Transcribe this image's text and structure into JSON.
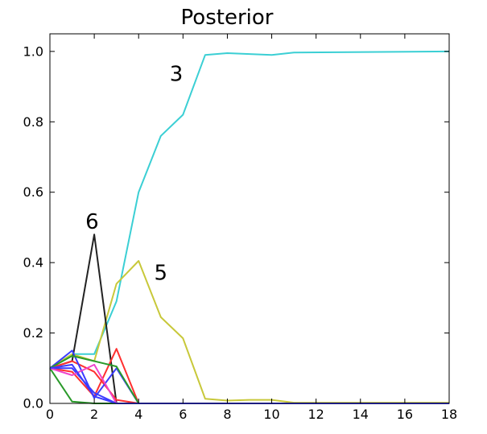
{
  "chart_data": {
    "type": "line",
    "title": "Posterior",
    "xlabel": "",
    "ylabel": "",
    "xlim": [
      0,
      18
    ],
    "ylim": [
      0,
      1.05
    ],
    "x_ticks": [
      "0",
      "2",
      "4",
      "6",
      "8",
      "10",
      "12",
      "14",
      "16",
      "18"
    ],
    "y_ticks": [
      "0.0",
      "0.2",
      "0.4",
      "0.6",
      "0.8",
      "1.0"
    ],
    "grid": false,
    "legend": "none",
    "series": [
      {
        "color": "#3bcfd4",
        "x": [
          0,
          1,
          2,
          3,
          4,
          5,
          6,
          7,
          8,
          10,
          11,
          18
        ],
        "values": [
          0.1,
          0.14,
          0.14,
          0.29,
          0.6,
          0.76,
          0.82,
          0.99,
          0.995,
          0.99,
          0.997,
          1.0
        ]
      },
      {
        "color": "#c8c83a",
        "x": [
          0,
          1,
          2,
          3,
          4,
          5,
          6,
          7,
          8,
          9,
          10,
          11,
          18
        ],
        "values": [
          0.1,
          0.14,
          0.12,
          0.34,
          0.405,
          0.245,
          0.185,
          0.013,
          0.008,
          0.01,
          0.01,
          0.002,
          0.002
        ]
      },
      {
        "color": "#222222",
        "x": [
          0,
          1,
          2,
          3,
          4,
          18
        ],
        "values": [
          0.1,
          0.12,
          0.48,
          0.0,
          0.0,
          0.0
        ]
      },
      {
        "color": "#ff3030",
        "x": [
          0,
          1,
          2,
          3,
          4,
          18
        ],
        "values": [
          0.1,
          0.09,
          0.02,
          0.155,
          0.0,
          0.0
        ]
      },
      {
        "color": "#ff3030",
        "x": [
          0,
          1,
          2,
          3,
          4,
          18
        ],
        "values": [
          0.1,
          0.12,
          0.09,
          0.01,
          0.0,
          0.0
        ]
      },
      {
        "color": "#3b3bff",
        "x": [
          0,
          1,
          2,
          3,
          4,
          18
        ],
        "values": [
          0.1,
          0.15,
          0.015,
          0.1,
          0.0,
          0.0
        ]
      },
      {
        "color": "#3b3bff",
        "x": [
          0,
          1,
          2,
          3,
          4,
          18
        ],
        "values": [
          0.1,
          0.1,
          0.03,
          0.0,
          0.0,
          0.0
        ]
      },
      {
        "color": "#2a9a2a",
        "x": [
          0,
          1,
          2,
          3,
          4,
          18
        ],
        "values": [
          0.1,
          0.005,
          0.0,
          0.0,
          0.0,
          0.0
        ]
      },
      {
        "color": "#2a9a2a",
        "x": [
          0,
          1,
          2,
          3,
          4,
          18
        ],
        "values": [
          0.1,
          0.135,
          0.12,
          0.105,
          0.0,
          0.0
        ]
      },
      {
        "color": "#ee44cc",
        "x": [
          0,
          1,
          2,
          3,
          4,
          18
        ],
        "values": [
          0.1,
          0.08,
          0.11,
          0.0,
          0.0,
          0.0
        ]
      },
      {
        "color": "#3b3bff",
        "x": [
          0,
          1,
          2,
          3,
          4,
          18
        ],
        "values": [
          0.1,
          0.11,
          0.02,
          0.0,
          0.0,
          0.0
        ]
      }
    ],
    "annotations": [
      {
        "text": "3",
        "x": 5.7,
        "y": 0.935
      },
      {
        "text": "5",
        "x": 5.0,
        "y": 0.37
      },
      {
        "text": "6",
        "x": 1.9,
        "y": 0.515
      }
    ]
  }
}
